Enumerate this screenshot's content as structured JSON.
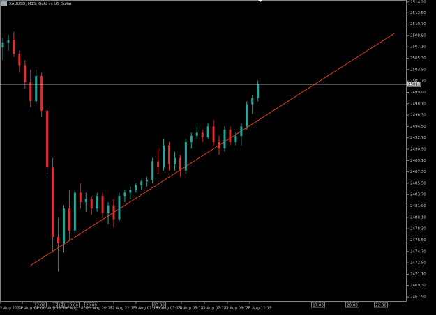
{
  "chart_data": {
    "type": "candlestick",
    "title": "XAUUSD, M15:  Gold vs US Dollar",
    "up_color": "#26a69a",
    "down_color": "#e0302a",
    "ylim": [
      2466.73,
      2514.52
    ],
    "yticks": [
      {
        "value": 2467.5,
        "label": "2467.50"
      },
      {
        "value": 2469.3,
        "label": "2469.30"
      },
      {
        "value": 2471.1,
        "label": "2471.10"
      },
      {
        "value": 2472.9,
        "label": "2472.90"
      },
      {
        "value": 2474.7,
        "label": "2474.70"
      },
      {
        "value": 2476.5,
        "label": "2476.50"
      },
      {
        "value": 2478.3,
        "label": "2478.30"
      },
      {
        "value": 2480.1,
        "label": "2480.10"
      },
      {
        "value": 2481.9,
        "label": "2481.90"
      },
      {
        "value": 2483.7,
        "label": "2483.70"
      },
      {
        "value": 2485.5,
        "label": "2485.50"
      },
      {
        "value": 2487.3,
        "label": "2487.30"
      },
      {
        "value": 2489.1,
        "label": "2489.10"
      },
      {
        "value": 2490.9,
        "label": "2490.90"
      },
      {
        "value": 2492.7,
        "label": "2492.70"
      },
      {
        "value": 2494.5,
        "label": "2494.50"
      },
      {
        "value": 2496.3,
        "label": "2496.30"
      },
      {
        "value": 2498.1,
        "label": "2498.10"
      },
      {
        "value": 2499.9,
        "label": "2499.90"
      },
      {
        "value": 2501.7,
        "label": "2501.70"
      },
      {
        "value": 2503.5,
        "label": "2503.50"
      },
      {
        "value": 2505.3,
        "label": "2505.30"
      },
      {
        "value": 2507.1,
        "label": "2507.10"
      },
      {
        "value": 2508.9,
        "label": "2508.90"
      },
      {
        "value": 2510.7,
        "label": "2510.70"
      },
      {
        "value": 2512.5,
        "label": "2512.50"
      },
      {
        "value": 2514.2,
        "label": "2514.20"
      }
    ],
    "x_labels": [
      "22 Aug 2024",
      "22 Aug 14:15",
      "22 Aug 16:15",
      "22 Aug 18:15",
      "22 Aug 20:15",
      "22 Aug 22:15",
      "23 Aug 01:15",
      "23 Aug 03:15",
      "23 Aug 05:15",
      "23 Aug 07:15",
      "23 Aug 09:15",
      "23 Aug 11:15"
    ],
    "period_markers": [
      "12:00",
      "17",
      "17",
      "18",
      "18:00",
      "20:00",
      "03:00",
      "17:00",
      "20:00",
      "22:00"
    ],
    "current_price": 2501.16,
    "trendline": {
      "start": 2472.5,
      "end": 2509.2
    },
    "open": [
      2507.0,
      2507.8,
      2508.2,
      2506.0,
      2504.2,
      2501.5,
      2498.5,
      2502.5,
      2497.0,
      2488.0,
      2477.0,
      2476.0,
      2481.5,
      2478.0,
      2484.0,
      2482.5,
      2483.0,
      2481.5,
      2483.5,
      2480.8,
      2482.0,
      2479.8,
      2483.5,
      2484.0,
      2484.5,
      2485.2,
      2485.8,
      2486.0,
      2489.0,
      2488.0,
      2491.5,
      2488.5,
      2489.5,
      2487.5,
      2492.0,
      2493.0,
      2493.5,
      2492.8,
      2494.5,
      2492.0,
      2491.0,
      2494.0,
      2492.0,
      2493.0,
      2494.5,
      2498.0,
      2499.0
    ],
    "high": [
      2508.5,
      2509.0,
      2509.5,
      2506.5,
      2505.0,
      2503.5,
      2503.5,
      2503.0,
      2497.5,
      2489.5,
      2480.0,
      2482.0,
      2484.5,
      2484.5,
      2485.5,
      2484.0,
      2483.5,
      2484.0,
      2484.0,
      2482.5,
      2483.0,
      2484.0,
      2484.5,
      2485.0,
      2485.5,
      2486.0,
      2486.5,
      2489.5,
      2491.0,
      2492.5,
      2492.0,
      2490.5,
      2490.0,
      2492.5,
      2493.5,
      2494.5,
      2494.0,
      2495.0,
      2495.5,
      2493.0,
      2494.5,
      2494.5,
      2493.5,
      2495.0,
      2498.5,
      2499.5,
      2501.8
    ],
    "low": [
      2505.0,
      2506.5,
      2505.5,
      2503.0,
      2500.5,
      2497.5,
      2498.0,
      2496.0,
      2487.0,
      2474.5,
      2471.5,
      2474.5,
      2476.5,
      2477.5,
      2481.5,
      2481.0,
      2480.5,
      2481.0,
      2480.0,
      2479.0,
      2478.5,
      2479.5,
      2482.5,
      2483.0,
      2484.0,
      2484.5,
      2485.0,
      2485.5,
      2487.0,
      2487.5,
      2487.5,
      2487.5,
      2486.5,
      2487.0,
      2491.0,
      2492.5,
      2492.0,
      2492.5,
      2491.5,
      2490.0,
      2490.5,
      2491.5,
      2491.5,
      2491.5,
      2494.0,
      2496.5,
      2498.5
    ],
    "close": [
      2507.8,
      2508.2,
      2506.0,
      2504.2,
      2501.5,
      2498.5,
      2502.5,
      2497.0,
      2488.0,
      2477.0,
      2476.0,
      2481.5,
      2478.0,
      2484.0,
      2482.5,
      2483.0,
      2481.5,
      2483.5,
      2480.8,
      2482.0,
      2479.8,
      2483.5,
      2484.0,
      2484.5,
      2485.2,
      2485.8,
      2486.0,
      2489.0,
      2488.0,
      2491.5,
      2488.5,
      2489.5,
      2487.5,
      2492.0,
      2493.0,
      2493.5,
      2492.8,
      2494.5,
      2492.0,
      2491.0,
      2494.0,
      2492.0,
      2493.0,
      2494.5,
      2498.0,
      2499.0,
      2501.2
    ]
  }
}
